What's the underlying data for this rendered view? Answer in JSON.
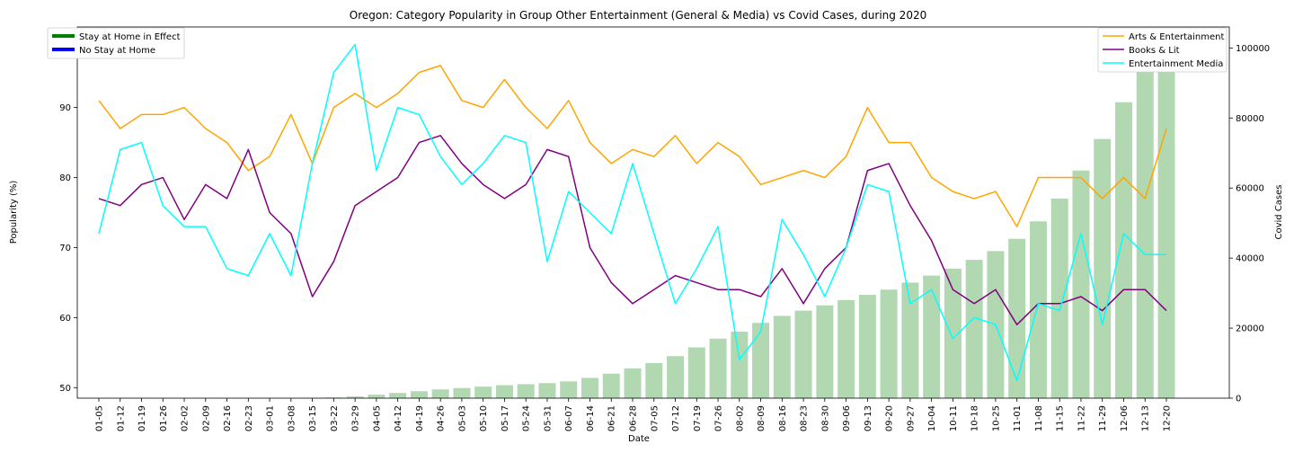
{
  "chart_data": {
    "type": "line",
    "title": "Oregon: Category Popularity in Group Other Entertainment (General & Media) vs Covid Cases, during 2020",
    "xlabel": "Date",
    "ylabel": "Popularity (%)",
    "y2label": "Covid Cases",
    "ylim": [
      48.5,
      101.5
    ],
    "y2lim": [
      0,
      106000
    ],
    "yticks": [
      50,
      60,
      70,
      80,
      90,
      100
    ],
    "y2ticks": [
      0,
      20000,
      40000,
      60000,
      80000,
      100000
    ],
    "categories": [
      "01-05",
      "01-12",
      "01-19",
      "01-26",
      "02-02",
      "02-09",
      "02-16",
      "02-23",
      "03-01",
      "03-08",
      "03-15",
      "03-22",
      "03-29",
      "04-05",
      "04-12",
      "04-19",
      "04-26",
      "05-03",
      "05-10",
      "05-17",
      "05-24",
      "05-31",
      "06-07",
      "06-14",
      "06-21",
      "06-28",
      "07-05",
      "07-12",
      "07-19",
      "07-26",
      "08-02",
      "08-09",
      "08-16",
      "08-23",
      "08-30",
      "09-06",
      "09-13",
      "09-20",
      "09-27",
      "10-04",
      "10-11",
      "10-18",
      "10-25",
      "11-01",
      "11-08",
      "11-15",
      "11-22",
      "11-29",
      "12-06",
      "12-13",
      "12-20"
    ],
    "bars": {
      "name": "Covid Cases",
      "color": "#b2d8b2",
      "values": [
        0,
        0,
        0,
        0,
        0,
        0,
        0,
        0,
        0,
        0,
        30,
        200,
        500,
        1000,
        1500,
        2000,
        2500,
        2900,
        3300,
        3700,
        4000,
        4300,
        4800,
        5800,
        7000,
        8500,
        10000,
        12000,
        14500,
        17000,
        19000,
        21500,
        23500,
        25000,
        26500,
        28000,
        29500,
        31000,
        33000,
        35000,
        37000,
        39500,
        42000,
        45500,
        50500,
        57000,
        65000,
        74000,
        84500,
        93500,
        102500
      ]
    },
    "series": [
      {
        "name": "Arts & Entertainment",
        "color": "#ffa500",
        "values": [
          91,
          87,
          89,
          89,
          90,
          87,
          85,
          81,
          83,
          89,
          82,
          90,
          92,
          90,
          92,
          95,
          96,
          91,
          90,
          94,
          90,
          87,
          91,
          85,
          82,
          84,
          83,
          86,
          82,
          85,
          83,
          79,
          80,
          81,
          80,
          83,
          90,
          85,
          85,
          80,
          78,
          77,
          78,
          73,
          80,
          80,
          80,
          77,
          80,
          77,
          87
        ]
      },
      {
        "name": "Books & Lit",
        "color": "#800080",
        "values": [
          77,
          76,
          79,
          80,
          74,
          79,
          77,
          84,
          75,
          72,
          63,
          68,
          76,
          78,
          80,
          85,
          86,
          82,
          79,
          77,
          79,
          84,
          83,
          70,
          65,
          62,
          64,
          66,
          65,
          64,
          64,
          63,
          67,
          62,
          67,
          70,
          81,
          82,
          76,
          71,
          64,
          62,
          64,
          59,
          62,
          62,
          63,
          61,
          64,
          64,
          61
        ]
      },
      {
        "name": "Entertainment Media",
        "color": "#00ffff",
        "values": [
          72,
          84,
          85,
          76,
          73,
          73,
          67,
          66,
          72,
          66,
          82,
          95,
          99,
          81,
          90,
          89,
          83,
          79,
          82,
          86,
          85,
          68,
          78,
          75,
          72,
          82,
          72,
          62,
          67,
          73,
          54,
          58,
          74,
          69,
          63,
          70,
          79,
          78,
          62,
          64,
          57,
          60,
          59,
          51,
          62,
          61,
          72,
          59,
          72,
          69,
          69
        ]
      }
    ],
    "legend_left": {
      "placement": "top-left",
      "entries": [
        {
          "label": "Stay at Home in Effect",
          "color": "#008000"
        },
        {
          "label": "No Stay at Home",
          "color": "#0000ff"
        }
      ]
    },
    "legend_right": {
      "placement": "top-right"
    },
    "grid": false
  }
}
